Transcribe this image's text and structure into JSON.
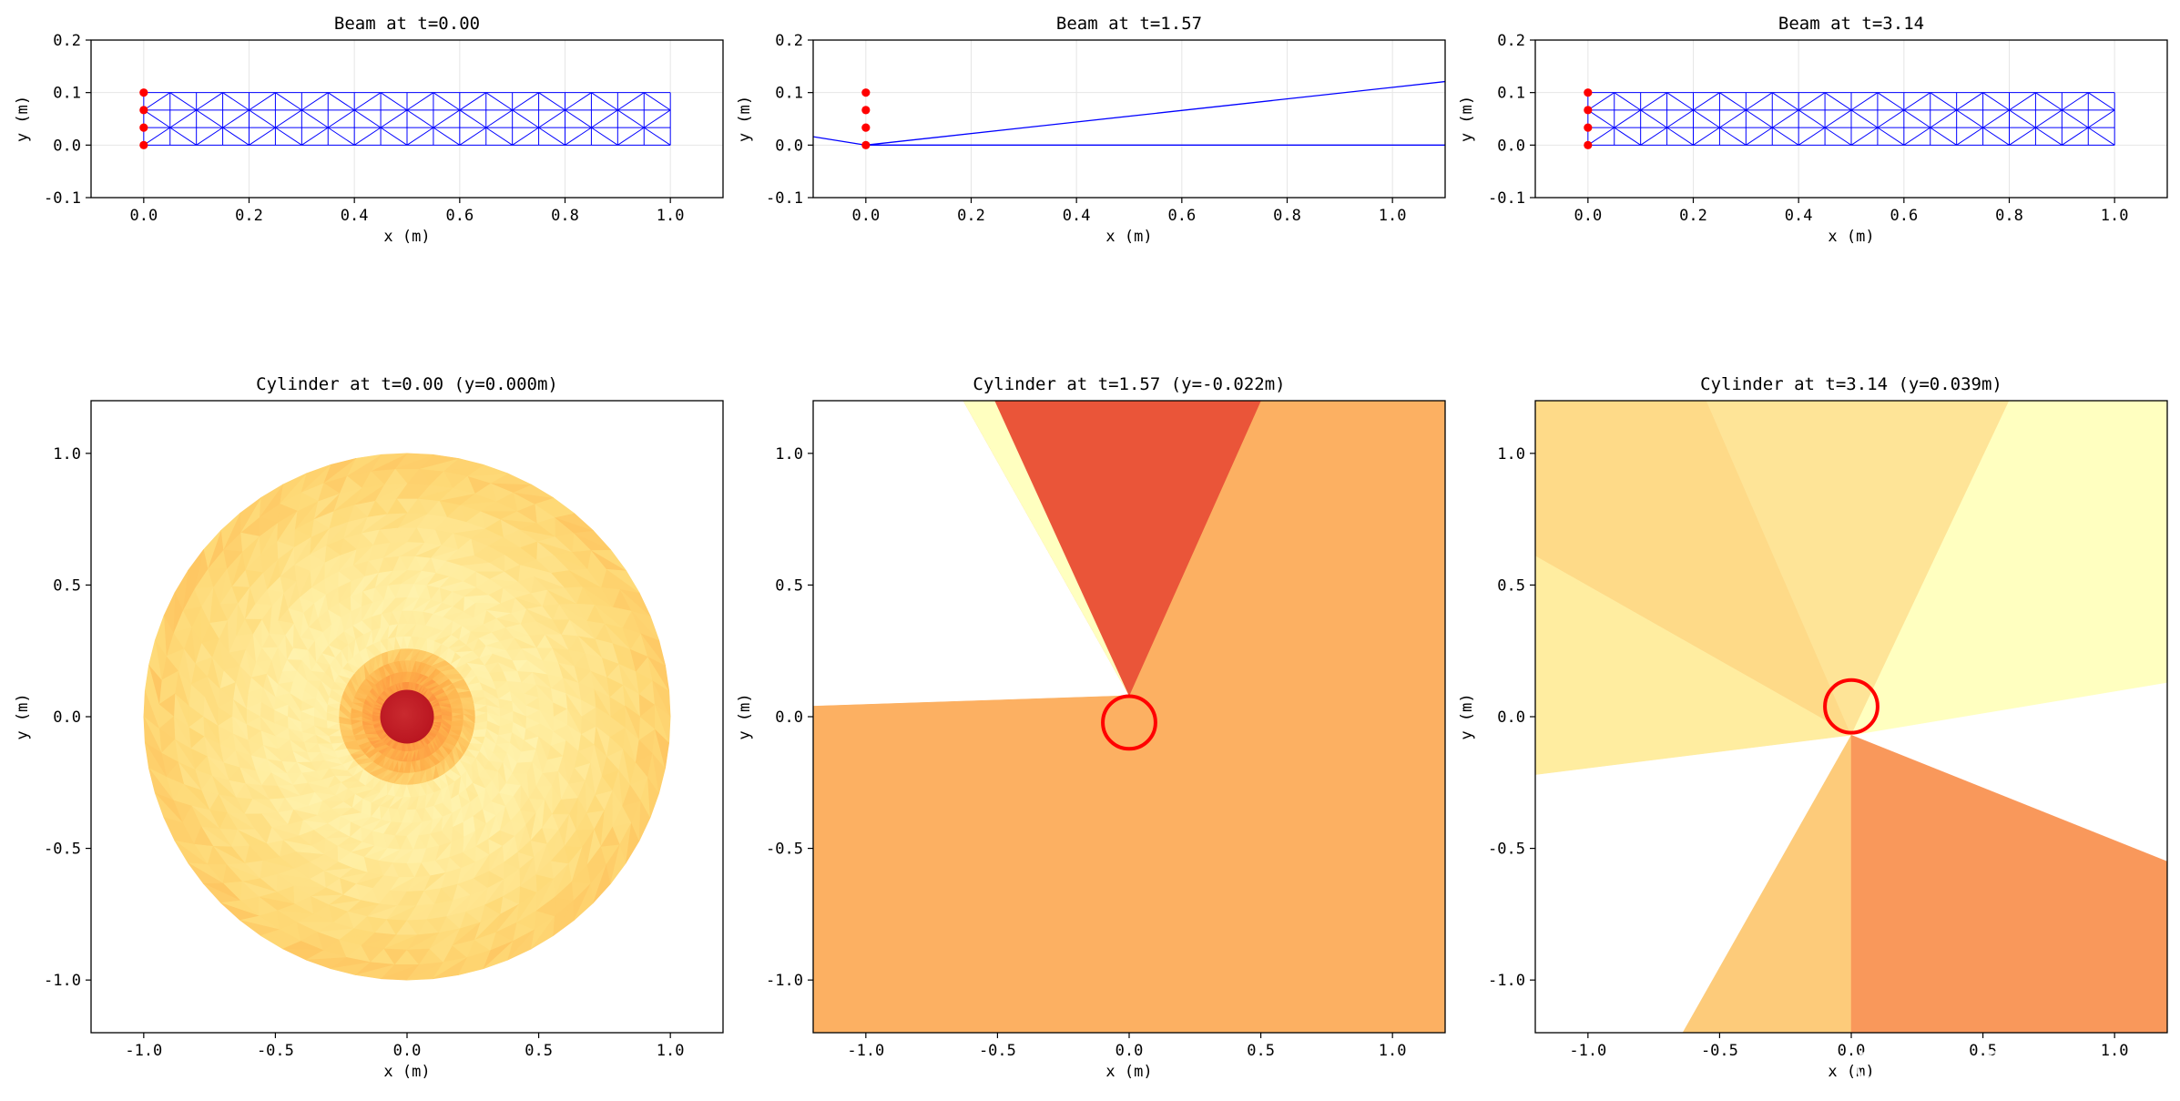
{
  "watermark": "CSDN @kkchenkx",
  "colors": {
    "mesh": "#0000ff",
    "fixed": "#ff0000",
    "ring": "#ff0000",
    "grid": "#e6e6e6"
  },
  "chart_data": [
    {
      "type": "line",
      "title": "Beam at t=0.00",
      "xlabel": "x (m)",
      "ylabel": "y (m)",
      "xlim": [
        -0.1,
        1.1
      ],
      "ylim": [
        -0.1,
        0.2
      ],
      "xticks": [
        "0.0",
        "0.2",
        "0.4",
        "0.6",
        "0.8",
        "1.0"
      ],
      "yticks": [
        "0.2",
        "0.1",
        "0.0",
        "-0.1"
      ],
      "grid": true,
      "mesh": {
        "x0": 0.0,
        "x1": 1.0,
        "y0": 0.0,
        "y1": 0.1,
        "cols": 20,
        "rows": 3
      },
      "fixed_nodes": [
        [
          0,
          0.0
        ],
        [
          0,
          0.0333
        ],
        [
          0,
          0.0667
        ],
        [
          0,
          0.1
        ]
      ],
      "deformed": false
    },
    {
      "type": "line",
      "title": "Beam at t=1.57",
      "xlabel": "x (m)",
      "ylabel": "y (m)",
      "xlim": [
        -0.1,
        1.1
      ],
      "ylim": [
        -0.1,
        0.2
      ],
      "xticks": [
        "0.0",
        "0.2",
        "0.4",
        "0.6",
        "0.8",
        "1.0"
      ],
      "yticks": [
        "0.2",
        "0.1",
        "0.0",
        "-0.1"
      ],
      "grid": true,
      "fixed_nodes": [
        [
          0,
          0.0
        ],
        [
          0,
          0.0333
        ],
        [
          0,
          0.0667
        ],
        [
          0,
          0.1
        ]
      ],
      "deformed": true,
      "lines": [
        [
          [
            -0.1,
            0.016
          ],
          [
            0.0,
            0.0
          ],
          [
            1.1,
            0.121
          ]
        ],
        [
          [
            0.0,
            0.0
          ],
          [
            1.1,
            0.0
          ]
        ]
      ]
    },
    {
      "type": "line",
      "title": "Beam at t=3.14",
      "xlabel": "x (m)",
      "ylabel": "y (m)",
      "xlim": [
        -0.1,
        1.1
      ],
      "ylim": [
        -0.1,
        0.2
      ],
      "xticks": [
        "0.0",
        "0.2",
        "0.4",
        "0.6",
        "0.8",
        "1.0"
      ],
      "yticks": [
        "0.2",
        "0.1",
        "0.0",
        "-0.1"
      ],
      "grid": true,
      "mesh": {
        "x0": 0.0,
        "x1": 1.0,
        "y0": 0.0,
        "y1": 0.1,
        "cols": 20,
        "rows": 3
      },
      "fixed_nodes": [
        [
          0,
          0.0
        ],
        [
          0,
          0.0333
        ],
        [
          0,
          0.0667
        ],
        [
          0,
          0.1
        ]
      ],
      "deformed": false
    },
    {
      "type": "heatmap",
      "title": "Cylinder at t=0.00 (y=0.000m)",
      "xlabel": "x (m)",
      "ylabel": "y (m)",
      "xlim": [
        -1.2,
        1.2
      ],
      "ylim": [
        -1.2,
        1.2
      ],
      "xticks": [
        "-1.0",
        "-0.5",
        "0.0",
        "0.5",
        "1.0"
      ],
      "yticks": [
        "1.0",
        "0.5",
        "0.0",
        "-0.5",
        "-1.0"
      ],
      "grid": false,
      "domain_radius": 1.0,
      "cylinder": {
        "cx": 0.0,
        "cy": 0.0,
        "r": 0.1
      },
      "palette": "YlOrRd"
    },
    {
      "type": "heatmap",
      "title": "Cylinder at t=1.57 (y=-0.022m)",
      "xlabel": "x (m)",
      "ylabel": "y (m)",
      "xlim": [
        -1.2,
        1.2
      ],
      "ylim": [
        -1.2,
        1.2
      ],
      "xticks": [
        "-1.0",
        "-0.5",
        "0.0",
        "0.5",
        "1.0"
      ],
      "yticks": [
        "1.0",
        "0.5",
        "0.0",
        "-0.5",
        "-1.0"
      ],
      "grid": false,
      "cylinder": {
        "cx": 0.0,
        "cy": -0.022,
        "r": 0.1
      },
      "regions": [
        {
          "color": "#fcb062",
          "pts": [
            [
              -1.2,
              0.04
            ],
            [
              0.0,
              0.08
            ],
            [
              -0.63,
              1.2
            ],
            [
              1.2,
              1.2
            ],
            [
              1.2,
              -1.2
            ],
            [
              -1.2,
              -1.2
            ]
          ]
        },
        {
          "color": "#ffffc0",
          "pts": [
            [
              0.0,
              0.08
            ],
            [
              -0.63,
              1.2
            ],
            [
              -0.5,
              1.2
            ]
          ]
        },
        {
          "color": "#ea5539",
          "pts": [
            [
              0.0,
              0.08
            ],
            [
              -0.51,
              1.2
            ],
            [
              0.5,
              1.2
            ]
          ]
        }
      ]
    },
    {
      "type": "heatmap",
      "title": "Cylinder at t=3.14 (y=0.039m)",
      "xlabel": "x (m)",
      "ylabel": "y (m)",
      "xlim": [
        -1.2,
        1.2
      ],
      "ylim": [
        -1.2,
        1.2
      ],
      "xticks": [
        "-1.0",
        "-0.5",
        "0.0",
        "0.5",
        "1.0"
      ],
      "yticks": [
        "1.0",
        "0.5",
        "0.0",
        "-0.5",
        "-1.0"
      ],
      "grid": false,
      "cylinder": {
        "cx": 0.0,
        "cy": 0.039,
        "r": 0.1
      },
      "regions": [
        {
          "color": "#feda88",
          "pts": [
            [
              0.0,
              -0.07
            ],
            [
              -1.2,
              0.61
            ],
            [
              -1.2,
              1.2
            ],
            [
              -0.55,
              1.2
            ]
          ]
        },
        {
          "color": "#fee497",
          "pts": [
            [
              0.0,
              -0.07
            ],
            [
              -0.55,
              1.2
            ],
            [
              0.6,
              1.2
            ]
          ]
        },
        {
          "color": "#ffffc0",
          "pts": [
            [
              0.0,
              -0.07
            ],
            [
              0.6,
              1.2
            ],
            [
              1.2,
              1.2
            ],
            [
              1.2,
              0.13
            ]
          ]
        },
        {
          "color": "#ffeda0",
          "pts": [
            [
              0.0,
              -0.07
            ],
            [
              -1.2,
              0.61
            ],
            [
              -1.2,
              -0.22
            ]
          ]
        },
        {
          "color": "#fdcb7a",
          "pts": [
            [
              0.0,
              -0.07
            ],
            [
              0.0,
              -1.2
            ],
            [
              -0.64,
              -1.2
            ]
          ]
        },
        {
          "color": "#f9985b",
          "pts": [
            [
              0.0,
              -0.07
            ],
            [
              1.2,
              -0.55
            ],
            [
              1.2,
              -1.2
            ],
            [
              0.0,
              -1.2
            ]
          ]
        }
      ]
    }
  ]
}
